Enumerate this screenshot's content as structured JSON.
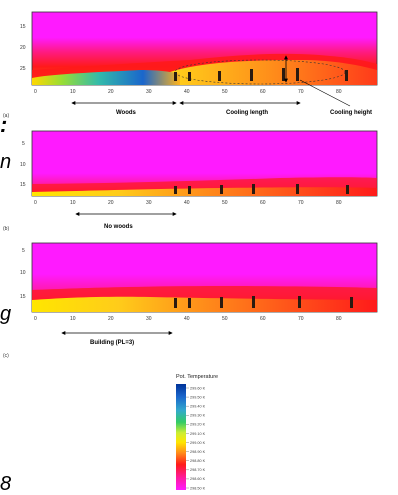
{
  "colors": {
    "magenta": "#ff1aff",
    "red": "#ff1a1a",
    "orange": "#ff8c1a",
    "yellow": "#ffe600",
    "lightyellow": "#fffb80",
    "green": "#33cc66",
    "blue": "#1a66cc",
    "darkblue": "#003399",
    "trees": "#2a1a10"
  },
  "panels": [
    {
      "id": "a",
      "panel_label": "(a)",
      "y_ticks": [
        "25",
        "20",
        "15"
      ],
      "x_ticks": [
        "0",
        "10",
        "20",
        "30",
        "40",
        "50",
        "60",
        "70",
        "80"
      ],
      "annotations": [
        "Woods",
        "Cooling length",
        "Cooling height"
      ]
    },
    {
      "id": "b",
      "panel_label": "(b)",
      "y_ticks": [
        "5",
        "10",
        "15"
      ],
      "x_ticks": [
        "0",
        "10",
        "20",
        "30",
        "40",
        "50",
        "60",
        "70",
        "80"
      ],
      "annotations": [
        "No woods"
      ]
    },
    {
      "id": "c",
      "panel_label": "(c)",
      "y_ticks": [
        "5",
        "10",
        "15"
      ],
      "x_ticks": [
        "0",
        "10",
        "20",
        "30",
        "40",
        "50",
        "60",
        "70",
        "80"
      ],
      "annotations": [
        "Building (PL=3)"
      ]
    }
  ],
  "legend": {
    "title": "Pot. Temperature",
    "entries": [
      "299.60 K",
      "299.50 K",
      "299.40 K",
      "299.30 K",
      "299.20 K",
      "299.10 K",
      "299.00 K",
      "298.90 K",
      "298.80 K",
      "298.70 K",
      "298.60 K",
      "298.50 K"
    ]
  },
  "margin_fragments": [
    ":",
    "n",
    "g",
    "8"
  ]
}
